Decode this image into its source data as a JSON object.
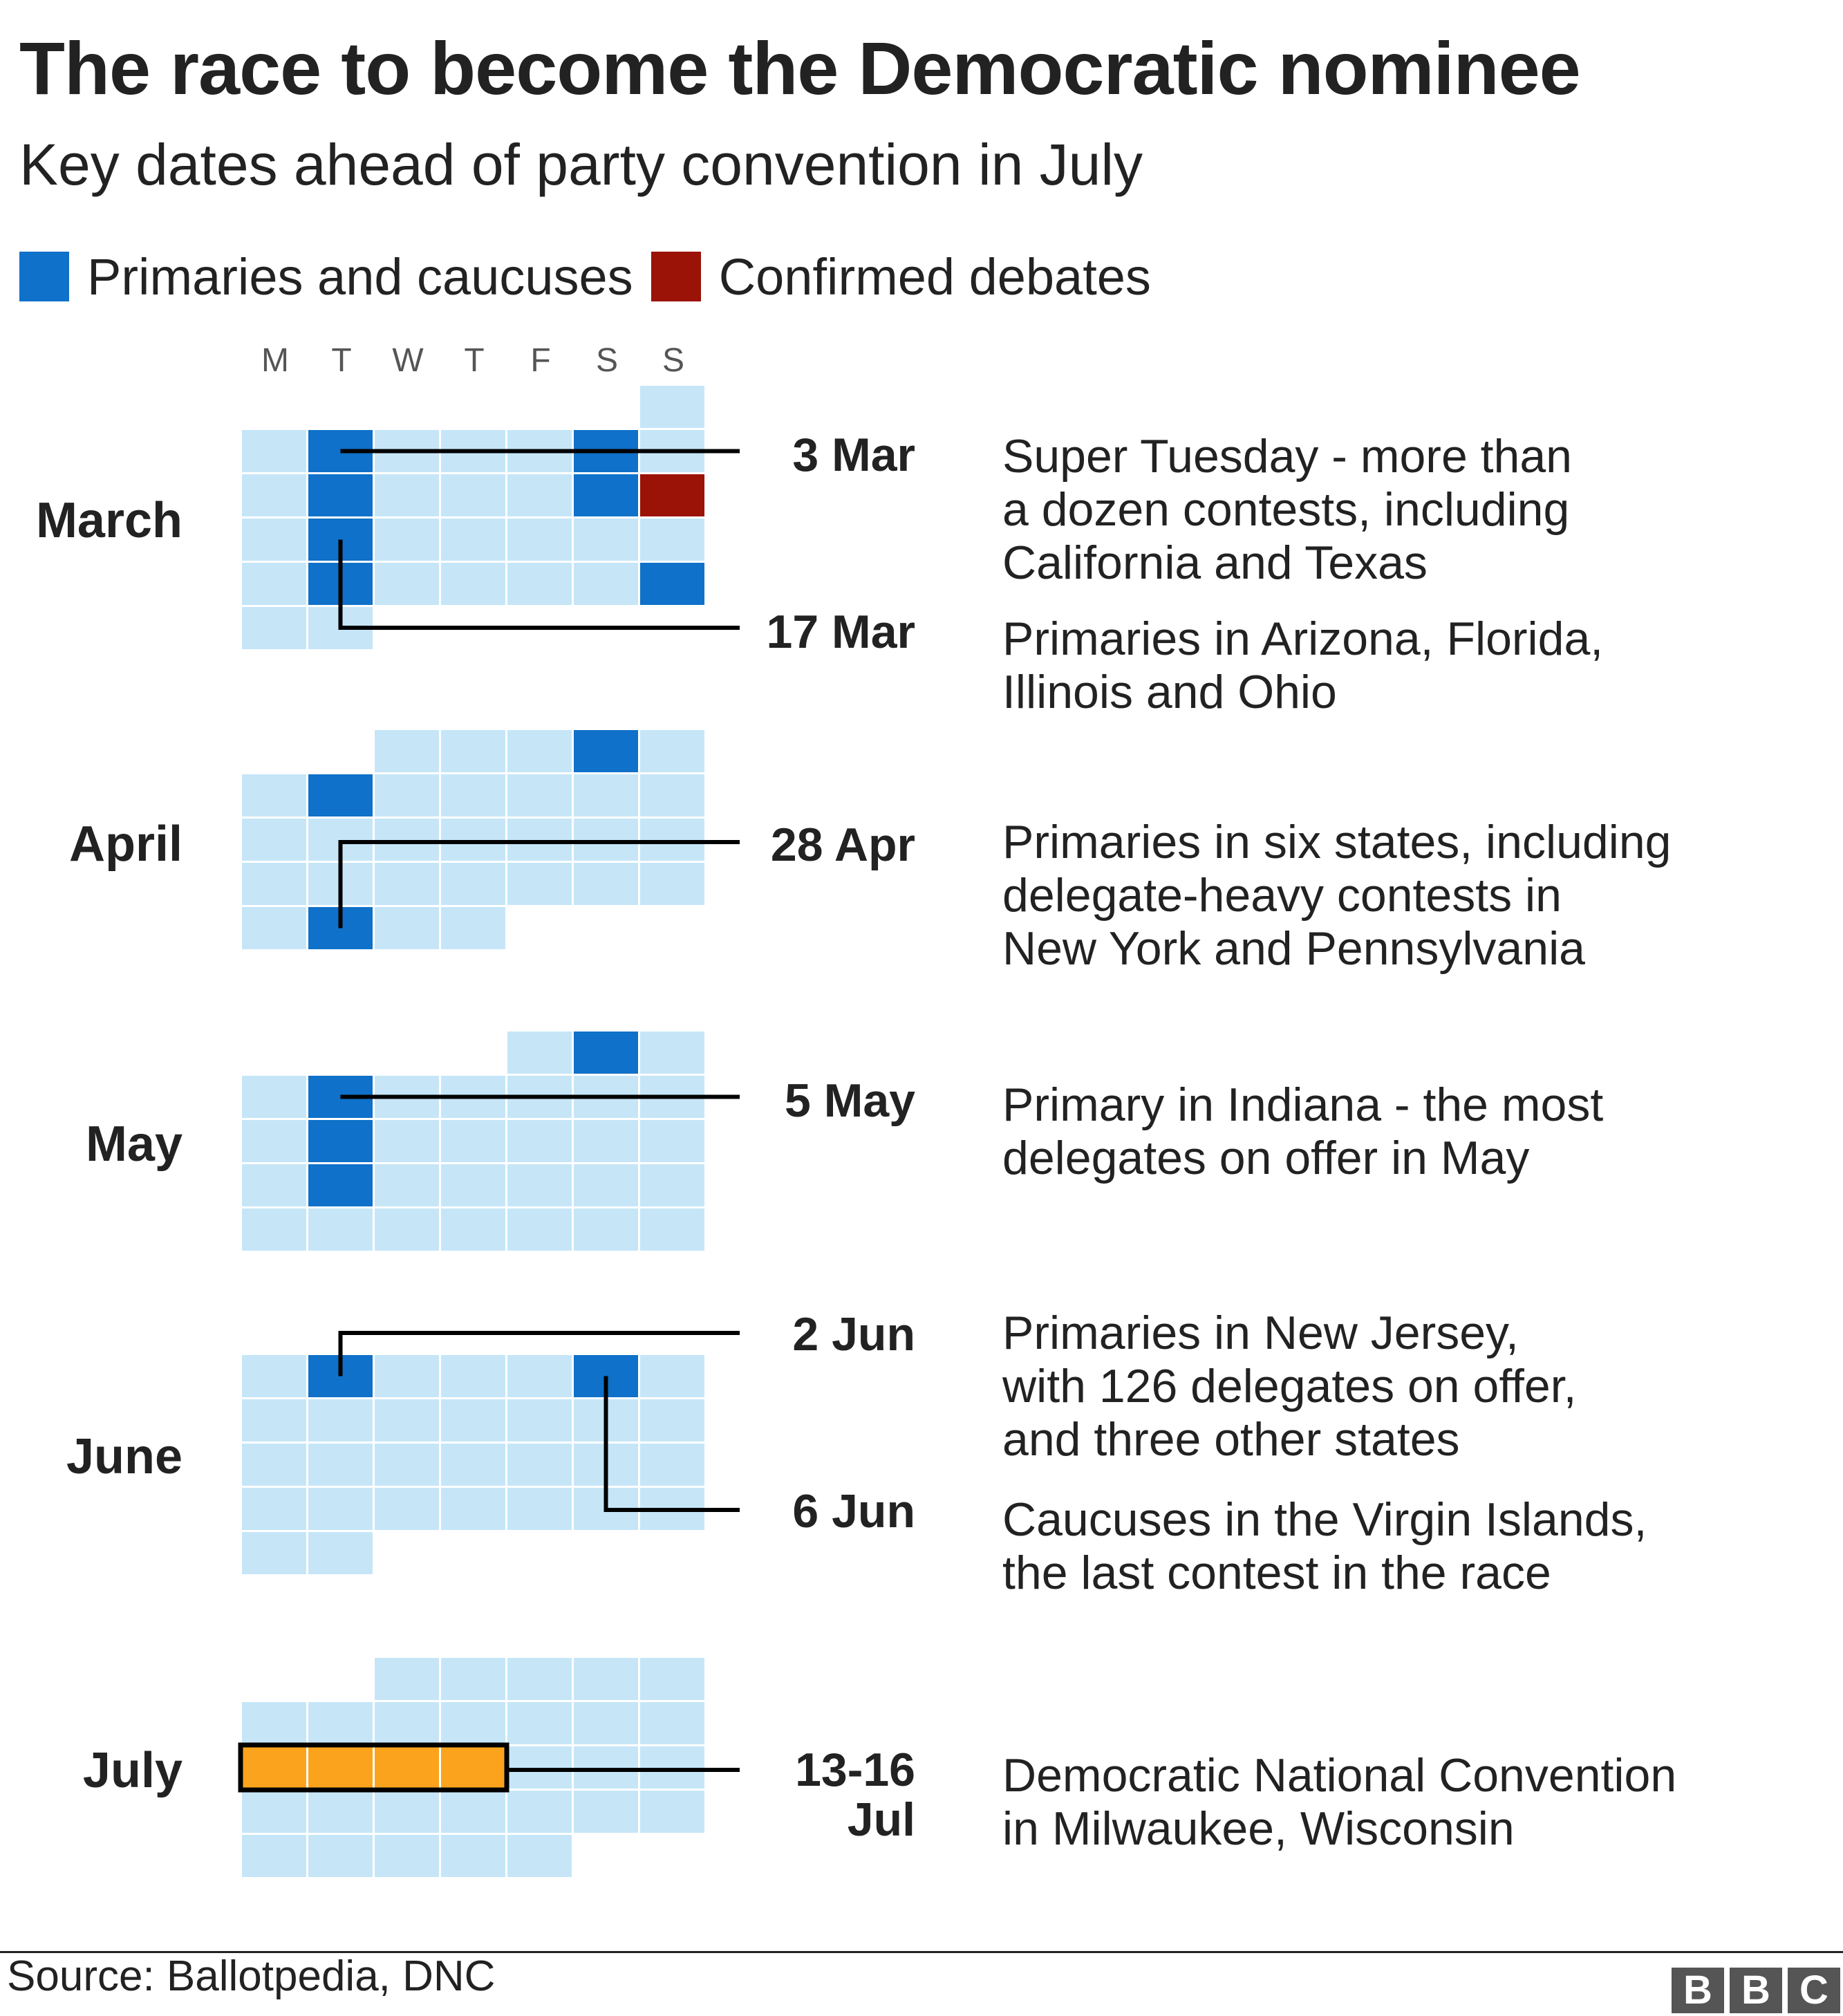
{
  "header": {
    "title": "The race to become the Democratic nominee",
    "subtitle": "Key dates ahead of party convention in July"
  },
  "legend": [
    {
      "label": "Primaries and caucuses",
      "color": "#0f71c9"
    },
    {
      "label": "Confirmed debates",
      "color": "#9b1206"
    }
  ],
  "colors": {
    "day": "#c6e6f8",
    "primary": "#0f71c9",
    "debate": "#9b1206",
    "convention": "#fca31d",
    "line": "#000000"
  },
  "day_headers": [
    "M",
    "T",
    "W",
    "T",
    "F",
    "S",
    "S"
  ],
  "months": [
    {
      "name": "March",
      "first_weekday": 7,
      "days": 31,
      "highlights": [
        {
          "day": 3,
          "kind": "primary"
        },
        {
          "day": 7,
          "kind": "primary"
        },
        {
          "day": 10,
          "kind": "primary"
        },
        {
          "day": 14,
          "kind": "primary"
        },
        {
          "day": 15,
          "kind": "debate"
        },
        {
          "day": 17,
          "kind": "primary"
        },
        {
          "day": 24,
          "kind": "primary"
        },
        {
          "day": 29,
          "kind": "primary"
        }
      ],
      "events": [
        {
          "date": "3 Mar",
          "day": 3,
          "desc": [
            "Super Tuesday - more than",
            "a dozen contests, including",
            "California and Texas"
          ]
        },
        {
          "date": "17 Mar",
          "day": 17,
          "desc": [
            "Primaries in Arizona, Florida,",
            "Illinois and Ohio"
          ]
        }
      ]
    },
    {
      "name": "April",
      "first_weekday": 3,
      "days": 30,
      "highlights": [
        {
          "day": 4,
          "kind": "primary"
        },
        {
          "day": 7,
          "kind": "primary"
        },
        {
          "day": 28,
          "kind": "primary"
        }
      ],
      "events": [
        {
          "date": "28 Apr",
          "day": 28,
          "desc": [
            "Primaries in six states, including",
            "delegate-heavy contests in",
            "New York and Pennsylvania"
          ]
        }
      ]
    },
    {
      "name": "May",
      "first_weekday": 5,
      "days": 31,
      "highlights": [
        {
          "day": 2,
          "kind": "primary"
        },
        {
          "day": 5,
          "kind": "primary"
        },
        {
          "day": 12,
          "kind": "primary"
        },
        {
          "day": 19,
          "kind": "primary"
        }
      ],
      "events": [
        {
          "date": "5 May",
          "day": 5,
          "desc": [
            "Primary in Indiana - the most",
            "delegates on offer in May"
          ]
        }
      ]
    },
    {
      "name": "June",
      "first_weekday": 1,
      "days": 30,
      "highlights": [
        {
          "day": 2,
          "kind": "primary"
        },
        {
          "day": 6,
          "kind": "primary"
        }
      ],
      "events": [
        {
          "date": "2 Jun",
          "day": 2,
          "desc": [
            "Primaries in New Jersey,",
            "with 126 delegates on offer,",
            "and three other states"
          ]
        },
        {
          "date": "6 Jun",
          "day": 6,
          "desc": [
            "Caucuses in the Virgin Islands,",
            "the last contest in the race"
          ]
        }
      ]
    },
    {
      "name": "July",
      "first_weekday": 3,
      "days": 31,
      "highlights": [
        {
          "day": 13,
          "kind": "convention"
        },
        {
          "day": 14,
          "kind": "convention"
        },
        {
          "day": 15,
          "kind": "convention"
        },
        {
          "day": 16,
          "kind": "convention"
        }
      ],
      "events": [
        {
          "date": "13-16 Jul",
          "date_lines": [
            "13-16",
            "Jul"
          ],
          "day": 13,
          "desc": [
            "Democratic National Convention",
            "in Milwaukee, Wisconsin"
          ]
        }
      ]
    }
  ],
  "footer": {
    "source": "Source: Ballotpedia, DNC",
    "logo_letters": [
      "B",
      "B",
      "C"
    ]
  }
}
